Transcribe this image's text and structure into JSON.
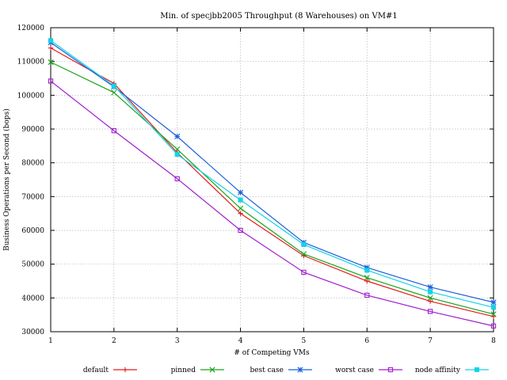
{
  "chart_data": {
    "type": "line",
    "title": "Min. of specjbb2005 Throughput (8 Warehouses) on VM#1",
    "xlabel": "# of Competing VMs",
    "ylabel": "Business Operations per Second (bops)",
    "x": [
      1,
      2,
      3,
      4,
      5,
      6,
      7,
      8
    ],
    "xlim": [
      1,
      8
    ],
    "ylim": [
      30000,
      120000
    ],
    "xticks": [
      "1",
      "2",
      "3",
      "4",
      "5",
      "6",
      "7",
      "8"
    ],
    "yticks": [
      "30000",
      "40000",
      "50000",
      "60000",
      "70000",
      "80000",
      "90000",
      "100000",
      "110000",
      "120000"
    ],
    "grid": true,
    "legend_position": "bottom",
    "series": [
      {
        "name": "default",
        "color": "#e41a1c",
        "marker": "plus",
        "values": [
          114000,
          103500,
          83000,
          65000,
          52500,
          45000,
          39000,
          34500
        ]
      },
      {
        "name": "pinned",
        "color": "#1aa31a",
        "marker": "cross",
        "values": [
          109800,
          100800,
          84000,
          66500,
          53000,
          46000,
          40000,
          35200
        ]
      },
      {
        "name": "best case",
        "color": "#1a5fdc",
        "marker": "asterisk",
        "values": [
          115600,
          102500,
          87800,
          71200,
          56400,
          49000,
          43200,
          38700
        ]
      },
      {
        "name": "worst case",
        "color": "#a01ecf",
        "marker": "open-square",
        "values": [
          104200,
          89500,
          75300,
          60000,
          47600,
          40800,
          36000,
          31700
        ]
      },
      {
        "name": "node affinity",
        "color": "#16d2e6",
        "marker": "filled-square",
        "values": [
          116200,
          102800,
          82500,
          69000,
          55800,
          48200,
          41800,
          37200
        ]
      }
    ]
  }
}
